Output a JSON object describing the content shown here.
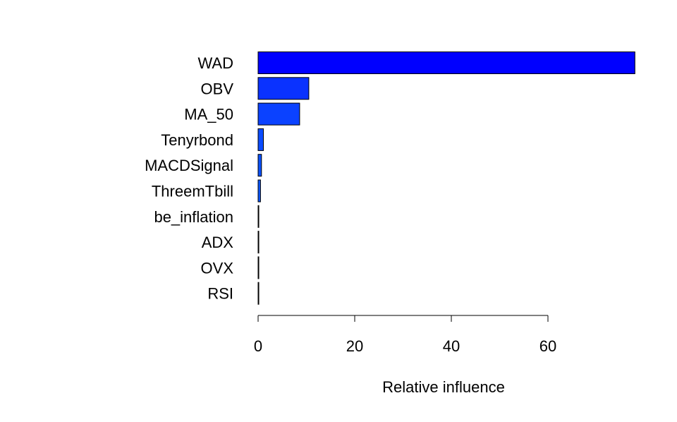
{
  "chart_data": {
    "type": "bar",
    "orientation": "horizontal",
    "title": "",
    "xlabel": "Relative influence",
    "ylabel": "",
    "categories": [
      "WAD",
      "OBV",
      "MA_50",
      "Tenyrbond",
      "MACDSignal",
      "ThreemTbill",
      "be_inflation",
      "ADX",
      "OVX",
      "RSI"
    ],
    "values": [
      78.0,
      10.5,
      8.6,
      1.1,
      0.7,
      0.5,
      0.1,
      0.1,
      0.1,
      0.05
    ],
    "colors": [
      "#0000ff",
      "#0a32ff",
      "#0b42ff",
      "#0b4cff",
      "#0b52ff",
      "#0b58ff",
      "#0b5cff",
      "#0b60ff",
      "#0b62ff",
      "#0b64ff"
    ],
    "xticks": [
      0,
      20,
      40,
      60
    ],
    "xtick_labels": [
      "0",
      "20",
      "40",
      "60"
    ],
    "xlim": [
      0,
      78
    ],
    "grid": false,
    "legend": "none"
  }
}
